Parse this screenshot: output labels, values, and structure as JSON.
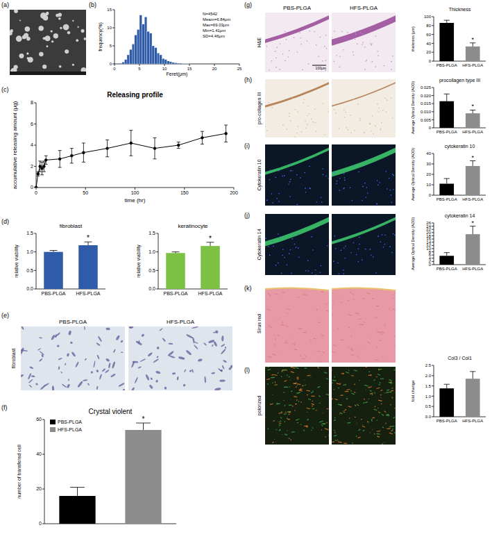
{
  "figure": {
    "panel_labels": [
      "(a)",
      "(b)",
      "(c)",
      "(d)",
      "(e)",
      "(f)",
      "(g)",
      "(h)",
      "(i)",
      "(j)",
      "(k)",
      "(l)"
    ],
    "e": {
      "column_headers": [
        "PBS-PLGA",
        "HFS-PLGA"
      ],
      "row_label": "fibroblast"
    },
    "histology": {
      "column_headers": [
        "PBS-PLGA",
        "HFS-PLGA"
      ],
      "row_labels": [
        "H&E",
        "pro-collagen III",
        "Cytokeratin 10",
        "Cytokeratin 14",
        "Sirus red",
        "polorized"
      ],
      "scale_label": "100μm"
    }
  },
  "chart_data": [
    {
      "type": "histogram",
      "xlabel": "Feret(μm)",
      "ylabel": "frequency(%)",
      "color": "#2f5ca8",
      "bins": [
        1.0,
        1.5,
        2.0,
        2.5,
        3.0,
        3.5,
        4.0,
        4.5,
        5.0,
        5.5,
        6.0,
        6.5,
        7.0,
        7.5,
        8.0,
        8.5,
        9.0,
        9.5,
        10.0,
        10.5,
        11.0,
        11.5,
        12.0,
        12.5,
        13.0,
        13.5,
        14.0,
        14.5,
        15.0
      ],
      "values": [
        0.2,
        0.5,
        1.2,
        2.5,
        4.0,
        5.5,
        8.0,
        9.5,
        13.5,
        11.0,
        13.0,
        9.0,
        8.5,
        5.0,
        4.5,
        3.0,
        2.5,
        1.5,
        1.2,
        0.8,
        0.6,
        0.4,
        0.3,
        0.2,
        0.2,
        0.1,
        0.1,
        0.1
      ],
      "xlim": [
        0,
        25
      ],
      "xticks": [
        0,
        5,
        10,
        15,
        20,
        25
      ],
      "ylim": [
        0,
        15
      ],
      "yticks": [
        0,
        5,
        10,
        15
      ],
      "annotations": [
        "N=4542",
        "Meam=6.84μm",
        "Max=69.03μm",
        "Min=1.41μm",
        "SD=4.46μm"
      ]
    },
    {
      "type": "line",
      "title": "Releasing profile",
      "xlabel": "time (hr)",
      "ylabel": "accumulative releasing amount (μg)",
      "color": "#000000",
      "marker": "circle",
      "x": [
        0,
        2,
        4,
        6,
        8,
        10,
        24,
        36,
        48,
        72,
        96,
        120,
        144,
        168,
        192
      ],
      "values": [
        0,
        1.3,
        2.0,
        1.8,
        2.0,
        2.6,
        2.7,
        3.0,
        3.3,
        3.7,
        4.2,
        3.7,
        4.0,
        4.7,
        5.1
      ],
      "errors": [
        0,
        0.2,
        0.5,
        0.6,
        0.5,
        0.4,
        0.8,
        0.7,
        0.9,
        0.8,
        1.2,
        1.0,
        0.3,
        0.6,
        0.8
      ],
      "xlim": [
        0,
        200
      ],
      "xticks": [
        0,
        50,
        100,
        150,
        200
      ],
      "ylim": [
        0,
        8
      ],
      "yticks": [
        0,
        2,
        4,
        6,
        8
      ]
    },
    {
      "type": "bar",
      "title": "fibroblast",
      "ylabel": "relative viability",
      "color": "#2f5ca8",
      "categories": [
        "PBS-PLGA",
        "HFS-PLGA"
      ],
      "values": [
        1.0,
        1.18
      ],
      "errors": [
        0.04,
        0.09
      ],
      "significance": [
        null,
        "*"
      ],
      "ylim": [
        0,
        1.5
      ],
      "yticks": [
        {
          "value": 0,
          "label": "0.0"
        },
        0.5,
        {
          "value": 1,
          "label": "1.0"
        },
        1.5
      ]
    },
    {
      "type": "bar",
      "title": "keratinocyte",
      "ylabel": "relative viability",
      "color": "#7cc143",
      "categories": [
        "PBS-PLGA",
        "HFS-PLGA"
      ],
      "values": [
        0.97,
        1.16
      ],
      "errors": [
        0.03,
        0.1
      ],
      "significance": [
        null,
        "*"
      ],
      "ylim": [
        0,
        1.5
      ],
      "yticks": [
        {
          "value": 0,
          "label": "0.0"
        },
        0.5,
        {
          "value": 1,
          "label": "1.0"
        },
        1.5
      ]
    },
    {
      "type": "bar",
      "title": "Crystal violent",
      "ylabel": "number of transfered cell",
      "colors": [
        "#000000",
        "#8c8c8c"
      ],
      "categories": [
        "PBS-PLGA",
        "HFS-PLGA"
      ],
      "values": [
        16,
        54
      ],
      "errors": [
        5,
        4
      ],
      "significance": [
        null,
        "*"
      ],
      "legend": "top-left",
      "tick_labels": "y",
      "ylim": [
        0,
        60
      ],
      "yticks": [
        0,
        20,
        40,
        60
      ]
    },
    {
      "type": "bar",
      "title": "Thickness",
      "ylabel": "thickness (μm)",
      "colors": [
        "#000000",
        "#8c8c8c"
      ],
      "categories": [
        "PBS-PLGA",
        "HFS-PLGA"
      ],
      "values": [
        86,
        33
      ],
      "errors": [
        6,
        8
      ],
      "significance": [
        null,
        "*"
      ],
      "ylim": [
        0,
        100
      ],
      "yticks": [
        0,
        20,
        40,
        60,
        80,
        100
      ]
    },
    {
      "type": "bar",
      "title": "procollagen type III",
      "ylabel": "Average Optical Density (AOD)",
      "colors": [
        "#000000",
        "#8c8c8c"
      ],
      "categories": [
        "PBS-PLGA",
        "HFS-PLGA"
      ],
      "values": [
        0.0165,
        0.009
      ],
      "errors": [
        0.0045,
        0.002
      ],
      "significance": [
        null,
        "*"
      ],
      "ylim": [
        0,
        0.025
      ],
      "yticks": [
        0,
        0.005,
        {
          "value": 0.01,
          "label": "0.010"
        },
        0.015,
        {
          "value": 0.02,
          "label": "0.020"
        },
        0.025
      ]
    },
    {
      "type": "bar",
      "title": "cytokeratin 10",
      "ylabel": "Average Optical Density (AOD)",
      "colors": [
        "#000000",
        "#8c8c8c"
      ],
      "categories": [
        "PBS-PLGA",
        "HFS-PLGA"
      ],
      "values": [
        11,
        28
      ],
      "errors": [
        5,
        5
      ],
      "significance": [
        null,
        "*"
      ],
      "ylim": [
        0,
        40
      ],
      "yticks": [
        0,
        10,
        20,
        30,
        40
      ]
    },
    {
      "type": "bar",
      "title": "cytokeratin 14",
      "ylabel": "Average Optical Density (AOD)",
      "colors": [
        "#000000",
        "#8c8c8c"
      ],
      "categories": [
        "PBS-PLGA",
        "HFS-PLGA"
      ],
      "values": [
        5.5,
        19
      ],
      "errors": [
        2,
        5
      ],
      "significance": [
        null,
        "*"
      ],
      "ylim": [
        0,
        26
      ],
      "yticks": [
        0,
        2,
        4,
        6,
        8,
        10,
        12,
        14,
        16,
        18,
        20,
        22,
        24,
        26
      ]
    },
    {
      "type": "bar",
      "title": "Col3 / Col1",
      "ylabel": "fold change",
      "colors": [
        "#000000",
        "#8c8c8c"
      ],
      "categories": [
        "PBS-PLGA",
        "HFS-PLGA"
      ],
      "values": [
        1.38,
        1.85
      ],
      "errors": [
        0.2,
        0.35
      ],
      "ylim": [
        0,
        2.5
      ],
      "yticks": [
        {
          "value": 0,
          "label": "0.0"
        },
        0.5,
        {
          "value": 1,
          "label": "1.0"
        },
        1.5,
        {
          "value": 2,
          "label": "2.0"
        },
        2.5
      ]
    }
  ]
}
